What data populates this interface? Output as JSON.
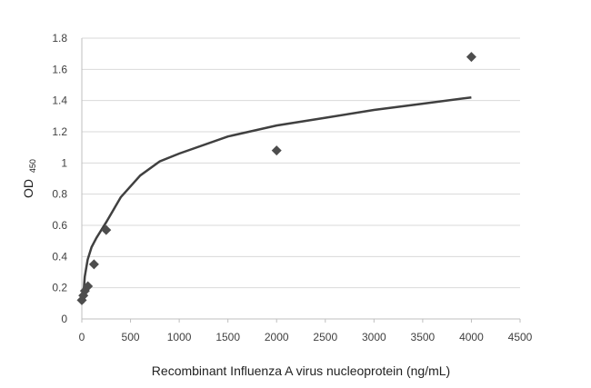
{
  "chart_data": {
    "type": "scatter",
    "xlabel": "Recombinant Influenza A virus nucleoprotein  (ng/mL)",
    "ylabel_main": "OD",
    "ylabel_sub": "450",
    "xlim": [
      0,
      4500
    ],
    "ylim": [
      0,
      1.8
    ],
    "x_ticks": [
      "0",
      "500",
      "1000",
      "1500",
      "2000",
      "2500",
      "3000",
      "3500",
      "4000",
      "4500"
    ],
    "y_ticks": [
      "0",
      "0.2",
      "0.4",
      "0.6",
      "0.8",
      "1",
      "1.2",
      "1.4",
      "1.6",
      "1.8"
    ],
    "grid": "horizontal",
    "series": [
      {
        "marker": "diamond",
        "color": "#4d4d4d",
        "x": [
          0,
          15.6,
          31.25,
          62.5,
          125,
          250,
          2000,
          4000
        ],
        "y": [
          0.12,
          0.15,
          0.18,
          0.21,
          0.35,
          0.57,
          1.08,
          1.68
        ]
      }
    ],
    "trendline": {
      "type": "logarithmic",
      "color": "#404040",
      "x_start": 10,
      "x_end": 4000,
      "points": [
        [
          10,
          0.1
        ],
        [
          30,
          0.27
        ],
        [
          60,
          0.38
        ],
        [
          100,
          0.46
        ],
        [
          150,
          0.52
        ],
        [
          250,
          0.62
        ],
        [
          400,
          0.78
        ],
        [
          600,
          0.92
        ],
        [
          800,
          1.01
        ],
        [
          1000,
          1.06
        ],
        [
          1500,
          1.17
        ],
        [
          2000,
          1.24
        ],
        [
          2500,
          1.29
        ],
        [
          3000,
          1.34
        ],
        [
          3500,
          1.38
        ],
        [
          4000,
          1.42
        ]
      ]
    }
  }
}
